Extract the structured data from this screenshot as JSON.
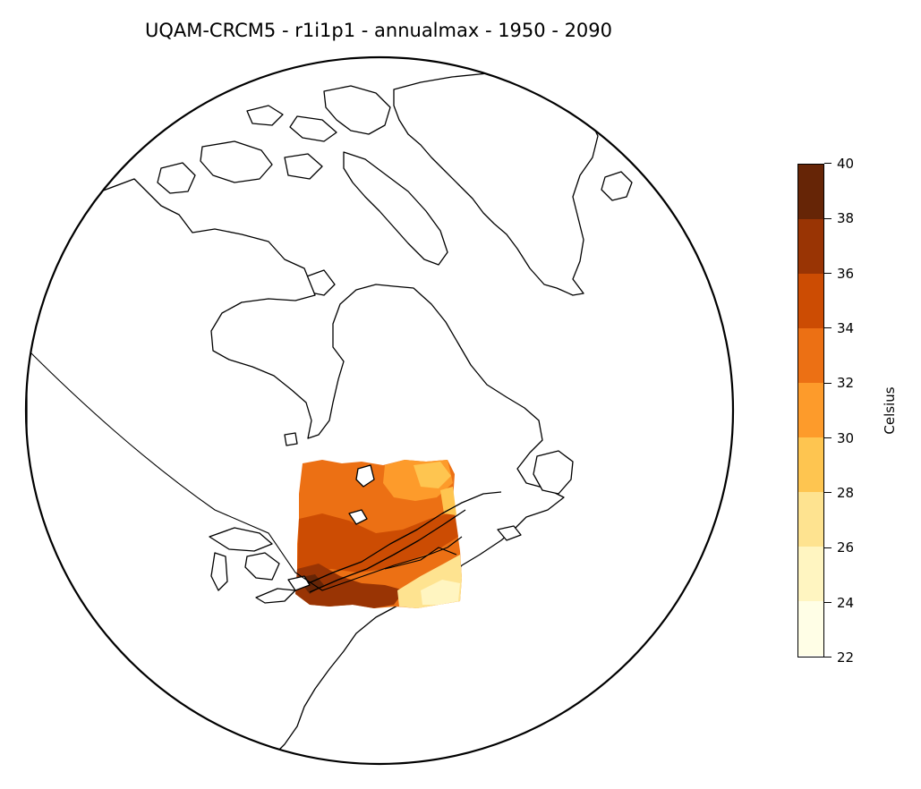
{
  "title": "UQAM-CRCM5 - r1i1p1 - annualmax - 1950 - 2090",
  "colorbar": {
    "label": "Celsius",
    "min": 22,
    "max": 40,
    "ticks": [
      "22",
      "24",
      "26",
      "28",
      "30",
      "32",
      "34",
      "36",
      "38",
      "40"
    ],
    "levels": [
      {
        "from": 22,
        "to": 24,
        "color": "#fffee6"
      },
      {
        "from": 24,
        "to": 26,
        "color": "#fff5c1"
      },
      {
        "from": 26,
        "to": 28,
        "color": "#fee390"
      },
      {
        "from": 28,
        "to": 30,
        "color": "#fec550"
      },
      {
        "from": 30,
        "to": 32,
        "color": "#fd9b2b"
      },
      {
        "from": 32,
        "to": 34,
        "color": "#ec7014"
      },
      {
        "from": 34,
        "to": 36,
        "color": "#cc4c03"
      },
      {
        "from": 36,
        "to": 38,
        "color": "#993404"
      },
      {
        "from": 38,
        "to": 40,
        "color": "#662506"
      }
    ]
  },
  "map": {
    "projection": "orthographic",
    "features": [
      "coastlines",
      "country-borders"
    ],
    "data_region": "southern Quebec / St. Lawrence valley"
  }
}
